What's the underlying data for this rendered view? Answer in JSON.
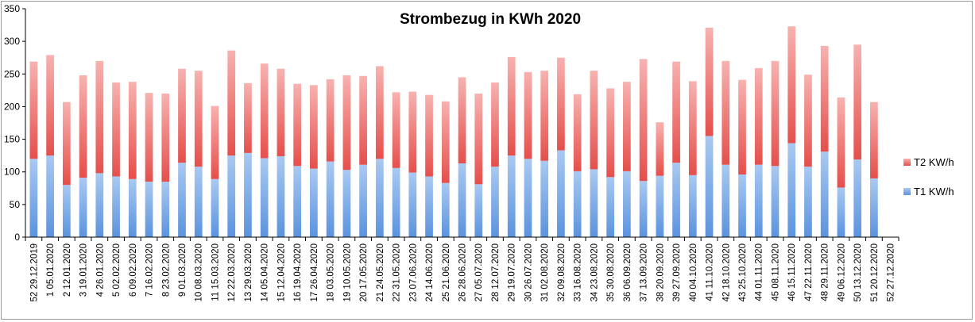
{
  "chart_data": {
    "type": "bar",
    "stacked": true,
    "title": "Strombezug in KWh 2020",
    "xlabel": "",
    "ylabel": "",
    "ylim": [
      0,
      350
    ],
    "yticks": [
      0,
      50,
      100,
      150,
      200,
      250,
      300,
      350
    ],
    "grid": false,
    "legend_position": "right",
    "categories": [
      "52 29.12.2019",
      "1 05.01.2020",
      "2 12.01.2020",
      "3 19.01.2020",
      "4 26.01.2020",
      "5 02.02.2020",
      "6 09.02.2020",
      "7 16.02.2020",
      "8 23.02.2020",
      "9 01.03.2020",
      "10 08.03.2020",
      "11 15.03.2020",
      "12 22.03.2020",
      "13 29.03.2020",
      "14 05.04.2020",
      "15 12.04.2020",
      "16 19.04.2020",
      "17 26.04.2020",
      "18 03.05.2020",
      "19 10.05.2020",
      "20 17.05.2020",
      "21 24.05.2020",
      "22 31.05.2020",
      "23 07.06.2020",
      "24 14.06.2020",
      "25 21.06.2020",
      "26 28.06.2020",
      "27 05.07.2020",
      "28 12.07.2020",
      "29 19.07.2020",
      "30 26.07.2020",
      "31 02.08.2020",
      "32 09.08.2020",
      "33 16.08.2020",
      "34 23.08.2020",
      "35 30.08.2020",
      "36 06.09.2020",
      "37 13.09.2020",
      "38 20.09.2020",
      "39 27.09.2020",
      "40 04.10.2020",
      "41 11.10.2020",
      "42 18.10.2020",
      "43 25.10.2020",
      "44 01.11.2020",
      "45 08.11.2020",
      "46 15.11.2020",
      "47 22.11.2020",
      "48 29.11.2020",
      "49 06.12.2020",
      "50 13.12.2020",
      "51 20.12.2020",
      "52 27.12.2020"
    ],
    "series": [
      {
        "name": "T1 KW/h",
        "color": "#5b9bd5",
        "values": [
          120,
          125,
          80,
          91,
          98,
          93,
          89,
          85,
          85,
          114,
          108,
          89,
          125,
          129,
          121,
          124,
          109,
          105,
          116,
          103,
          111,
          120,
          106,
          99,
          93,
          83,
          113,
          81,
          108,
          125,
          120,
          117,
          133,
          101,
          104,
          92,
          101,
          86,
          94,
          114,
          95,
          155,
          111,
          96,
          111,
          109,
          144,
          108,
          131,
          76,
          119,
          90,
          0
        ]
      },
      {
        "name": "T2 KW/h",
        "color": "#e8524f",
        "values": [
          149,
          154,
          127,
          157,
          172,
          144,
          149,
          136,
          135,
          144,
          147,
          112,
          161,
          107,
          145,
          134,
          126,
          128,
          126,
          145,
          136,
          142,
          116,
          124,
          125,
          125,
          132,
          139,
          129,
          151,
          133,
          138,
          142,
          118,
          151,
          136,
          137,
          187,
          82,
          155,
          144,
          166,
          159,
          145,
          148,
          161,
          179,
          141,
          162,
          138,
          176,
          117,
          0
        ]
      }
    ]
  }
}
